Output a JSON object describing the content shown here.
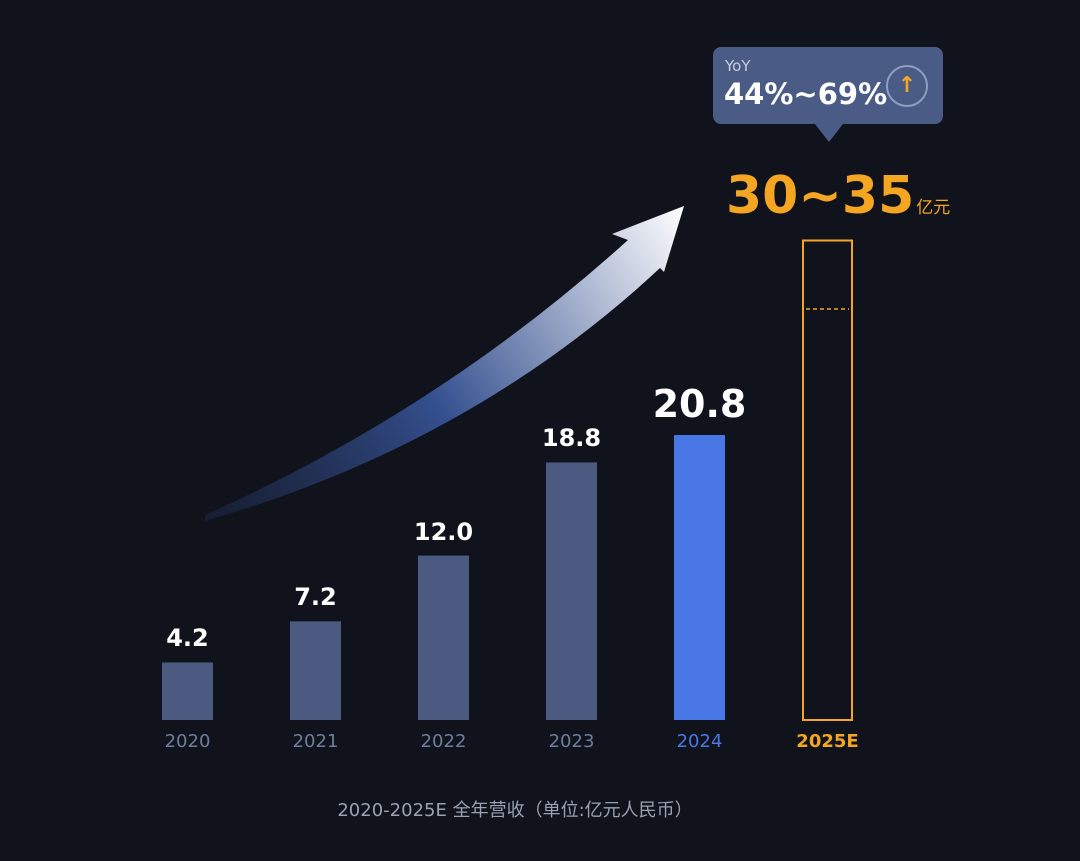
{
  "chart_data": {
    "type": "bar",
    "categories": [
      "2020",
      "2021",
      "2022",
      "2023",
      "2024",
      "2025E"
    ],
    "values": [
      4.2,
      7.2,
      12.0,
      18.8,
      20.8,
      null
    ],
    "value_labels": [
      "4.2",
      "7.2",
      "12.0",
      "18.8",
      "20.8",
      ""
    ],
    "forecast": {
      "category": "2025E",
      "low": 30,
      "high": 35,
      "label": "30~35",
      "unit": "亿元"
    },
    "yoy": {
      "label": "YoY",
      "value": "44%~69%",
      "icon": "arrow-up-icon"
    },
    "caption": "2020-2025E 全年营收（单位:亿元人民币）",
    "ylim": [
      0,
      35
    ],
    "grid": false,
    "colors": {
      "bar": "#4a5a80",
      "highlight": "#4a77e6",
      "forecast": "#f4a623",
      "background": "#10131c",
      "tooltip": "#4a5b86"
    },
    "decorations": [
      "growth-arrow-icon"
    ]
  }
}
